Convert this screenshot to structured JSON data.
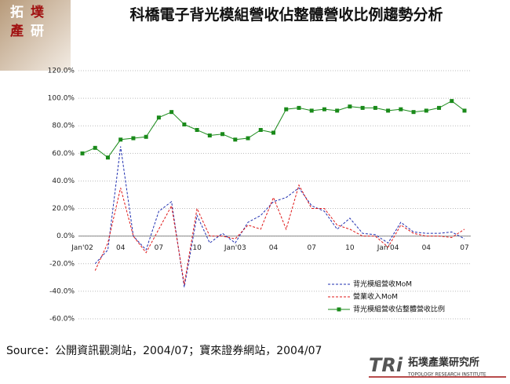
{
  "chart_data": {
    "type": "line",
    "title": "科橋電子背光模組營收佔整體營收比例趨勢分析",
    "source": "Source：公開資訊觀測站，2004/07；寶來證券網站，2004/07",
    "categories": [
      "Jan'02",
      null,
      null,
      "04",
      null,
      null,
      "07",
      null,
      null,
      "10",
      null,
      null,
      "Jan'03",
      null,
      null,
      "04",
      null,
      null,
      "07",
      null,
      null,
      "10",
      null,
      null,
      "Jan'04",
      null,
      null,
      "04",
      null,
      null,
      "07"
    ],
    "series": [
      {
        "name": "背光模組營收MoM",
        "color": "#1f2fb0",
        "dashed": true,
        "marker": null,
        "values": [
          null,
          -20,
          -10,
          65,
          0,
          -10,
          18,
          25,
          -37,
          15,
          -5,
          2,
          -5,
          10,
          15,
          25,
          28,
          35,
          22,
          18,
          5,
          13,
          2,
          1,
          -5,
          10,
          3,
          2,
          2,
          3,
          -2
        ]
      },
      {
        "name": "營業收入MoM",
        "color": "#e01818",
        "dashed": true,
        "marker": null,
        "values": [
          null,
          -25,
          -5,
          35,
          0,
          -12,
          5,
          22,
          -35,
          20,
          0,
          0,
          -2,
          8,
          5,
          28,
          5,
          37,
          20,
          20,
          8,
          5,
          0,
          0,
          -8,
          8,
          2,
          0,
          0,
          -1,
          5
        ]
      },
      {
        "name": "背光模組營收佔整體營收比例",
        "color": "#1a8a1a",
        "dashed": false,
        "marker": "square",
        "values": [
          60,
          64,
          57,
          70,
          71,
          72,
          86,
          90,
          81,
          77,
          73,
          74,
          70,
          71,
          77,
          75,
          92,
          93,
          91,
          92,
          91,
          94,
          93,
          93,
          91,
          92,
          90,
          91,
          93,
          98,
          91
        ]
      }
    ],
    "ylim": [
      -60,
      120
    ],
    "yticks": [
      {
        "value": -60,
        "label": "-60.0%"
      },
      {
        "value": -40,
        "label": "-40.0%"
      },
      {
        "value": -20,
        "label": "-20.0%"
      },
      {
        "value": 0,
        "label": "0.0%"
      },
      {
        "value": 20,
        "label": "20.0%"
      },
      {
        "value": 40,
        "label": "40.0%"
      },
      {
        "value": 60,
        "label": "60.0%"
      },
      {
        "value": 80,
        "label": "80.0%"
      },
      {
        "value": 100,
        "label": "100.0%"
      },
      {
        "value": 120,
        "label": "120.0%"
      }
    ],
    "grid": true,
    "legend": "lower right"
  },
  "header_logo": [
    "拓",
    "墣",
    "產",
    "研"
  ],
  "footer_logo": {
    "mark": "TRi",
    "name": "拓墣產業研究所",
    "english": "TOPOLOGY RESEARCH INSTITUTE"
  }
}
